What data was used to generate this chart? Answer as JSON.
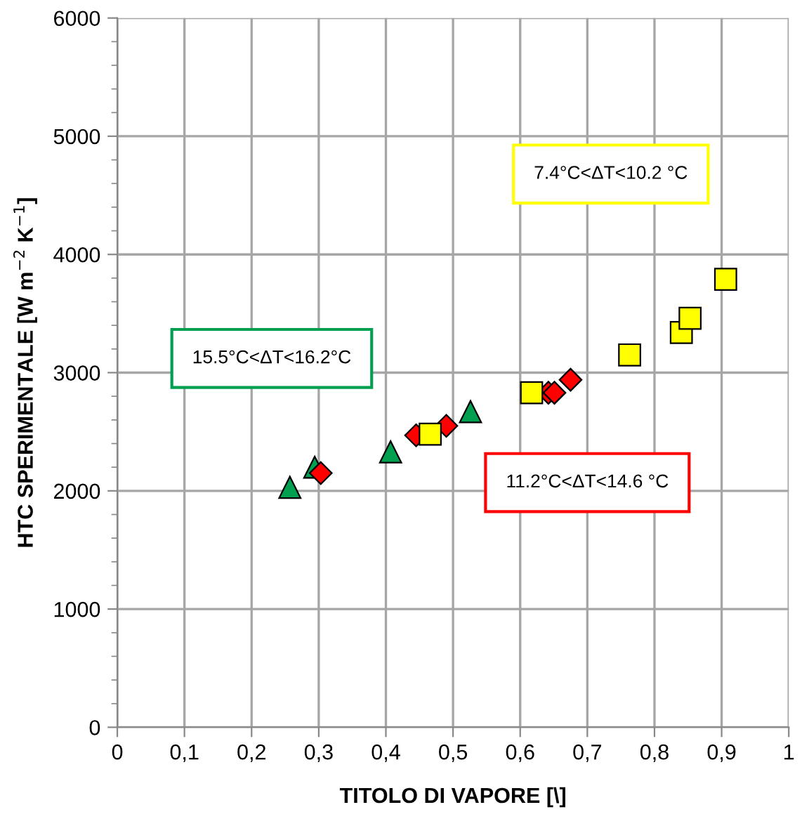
{
  "chart_data": {
    "type": "scatter",
    "xlabel": "TITOLO DI VAPORE [\\]",
    "ylabel": "HTC SPERIMENTALE [W m$^{−2}$ K$^{−1}$]",
    "xlim": [
      0,
      1
    ],
    "ylim": [
      0,
      6000
    ],
    "xticks": [
      0,
      {
        "value": 0.1,
        "label": "0,1"
      },
      {
        "value": 0.2,
        "label": "0,2"
      },
      {
        "value": 0.3,
        "label": "0,3"
      },
      {
        "value": 0.4,
        "label": "0,4"
      },
      {
        "value": 0.5,
        "label": "0,5"
      },
      {
        "value": 0.6,
        "label": "0,6"
      },
      {
        "value": 0.7,
        "label": "0,7"
      },
      {
        "value": 0.8,
        "label": "0,8"
      },
      {
        "value": 0.9,
        "label": "0,9"
      },
      1
    ],
    "yticks": [
      0,
      1000,
      2000,
      3000,
      4000,
      5000,
      6000
    ],
    "grid": true,
    "series": [
      {
        "name": "15.5°C<ΔT<16.2°C",
        "color": "#00a050",
        "marker": "triangle",
        "x": [
          0.257,
          0.294,
          0.407,
          0.526
        ],
        "values": [
          2030,
          2200,
          2330,
          2670
        ]
      },
      {
        "name": "11.2°C<ΔT<14.6 °C",
        "color": "#ff0000",
        "marker": "diamond",
        "x": [
          0.303,
          0.445,
          0.49,
          0.642,
          0.651,
          0.675
        ],
        "values": [
          2150,
          2470,
          2550,
          2830,
          2830,
          2940
        ]
      },
      {
        "name": "7.4°C<ΔT<10.2 °C",
        "color": "#ffff00",
        "marker": "square",
        "x": [
          0.466,
          0.617,
          0.763,
          0.84,
          0.853,
          0.906
        ],
        "values": [
          2480,
          2830,
          3150,
          3340,
          3460,
          3790
        ]
      }
    ]
  }
}
